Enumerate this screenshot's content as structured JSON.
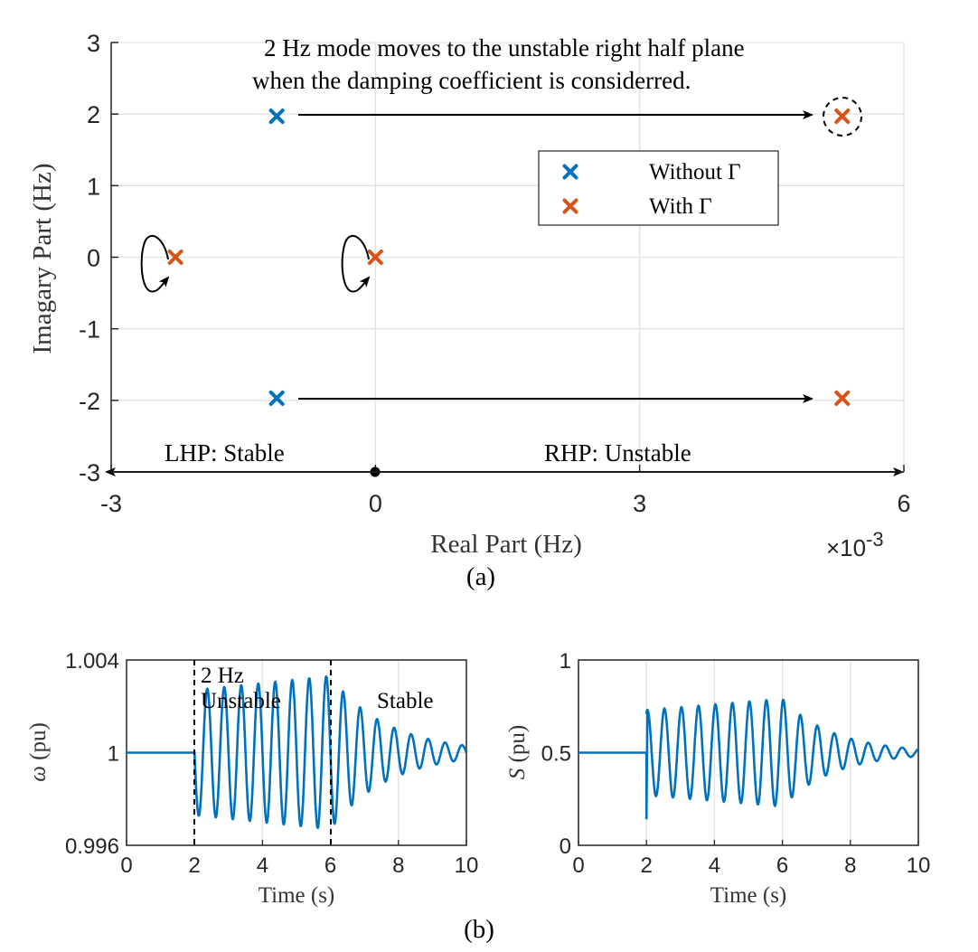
{
  "colors": {
    "without": "#0072BD",
    "with": "#D95319",
    "line": "#0072BD",
    "grid": "#e2e2e2",
    "axis": "#000000"
  },
  "panel_a": {
    "caption": "(a)",
    "annotation_line1": "2 Hz mode moves to the unstable right half plane",
    "annotation_line2": "when the damping coefficient is considerred.",
    "lhp_label": "LHP: Stable",
    "rhp_label": "RHP: Unstable",
    "x_exponent_base": "×10",
    "x_exponent_power": "-3"
  },
  "panel_b": {
    "caption": "(b)",
    "left_annotation_mode": "2 Hz",
    "left_annotation_unstable": "Unstable",
    "left_annotation_stable": "Stable"
  },
  "chart_data": [
    {
      "type": "scatter",
      "xlabel": "Real Part (Hz)",
      "ylabel": "Imagary Part (Hz)",
      "xlim": [
        -0.003,
        0.006
      ],
      "ylim": [
        -3,
        3
      ],
      "xticks": [
        -0.003,
        0,
        0.003,
        0.006
      ],
      "xtick_labels": [
        "-3",
        "0",
        "3",
        "6"
      ],
      "yticks": [
        -3,
        -2,
        -1,
        0,
        1,
        2,
        3
      ],
      "ytick_labels": [
        "-3",
        "-2",
        "-1",
        "0",
        "1",
        "2",
        "3"
      ],
      "grid": true,
      "legend_position": "upper-right",
      "series": [
        {
          "name": "Without Γ",
          "marker": "x",
          "points": [
            [
              -0.00112,
              1.97
            ],
            [
              -0.00112,
              -1.97
            ]
          ]
        },
        {
          "name": "With Γ",
          "marker": "x",
          "points": [
            [
              -0.00227,
              0.0
            ],
            [
              0.0,
              0.0
            ],
            [
              0.0053,
              1.97
            ],
            [
              0.0053,
              -1.97
            ]
          ]
        }
      ]
    },
    {
      "type": "line",
      "xlabel": "Time (s)",
      "ylabel": "ω (pu)",
      "xlim": [
        0,
        10
      ],
      "ylim": [
        0.996,
        1.004
      ],
      "xticks": [
        0,
        2,
        4,
        6,
        8,
        10
      ],
      "yticks": [
        0.996,
        1,
        1.004
      ],
      "ytick_labels": [
        "0.996",
        "1",
        "1.004"
      ],
      "grid": true,
      "signal": {
        "baseline": 1.0,
        "disturbance_time": 2,
        "frequency_hz": 2,
        "amplitude_start": 0.0027,
        "amplitude_peak": 0.0033,
        "peak_time": 6,
        "decay_end_amplitude": 0.0003
      },
      "markers_vertical_dashed": [
        2,
        6
      ]
    },
    {
      "type": "line",
      "xlabel": "Time (s)",
      "ylabel": "S (pu)",
      "xlim": [
        0,
        10
      ],
      "ylim": [
        0,
        1
      ],
      "xticks": [
        0,
        2,
        4,
        6,
        8,
        10
      ],
      "yticks": [
        0,
        0.5,
        1
      ],
      "ytick_labels": [
        "0",
        "0.5",
        "1"
      ],
      "grid": true,
      "signal": {
        "baseline": 0.5,
        "disturbance_time": 2,
        "frequency_hz": 2,
        "amplitude_start": 0.23,
        "amplitude_peak": 0.29,
        "peak_time": 6,
        "decay_end_amplitude": 0.02,
        "initial_dip": 0.14
      }
    }
  ]
}
